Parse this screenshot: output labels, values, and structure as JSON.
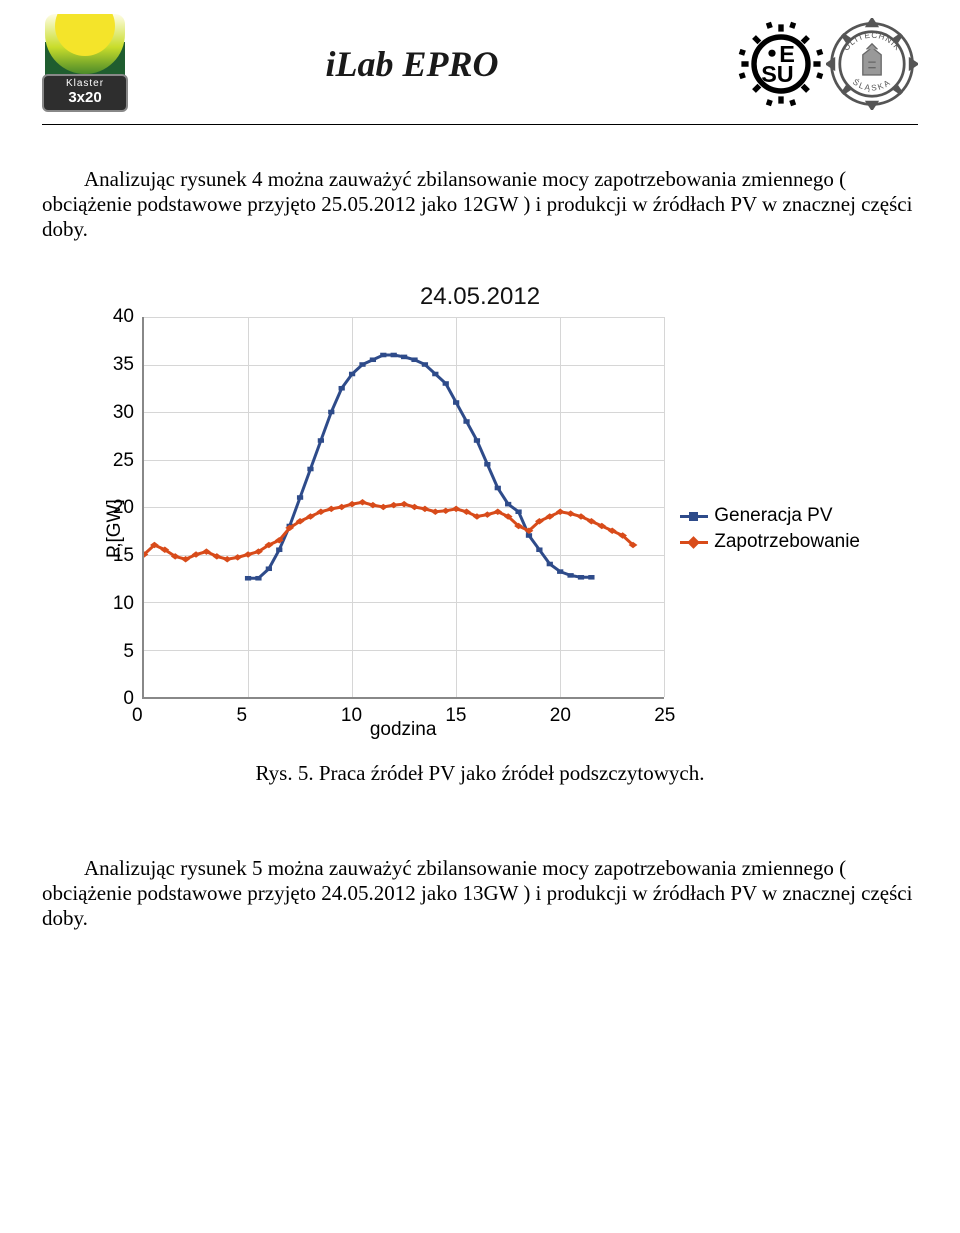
{
  "header": {
    "klaster_top": "Klaster",
    "klaster_num": "3x20",
    "ilab": "iLab EPRO",
    "iesu": "iE SU",
    "polsl_top": "POLITECHNIKA",
    "polsl_bottom": "ŚLĄSKA"
  },
  "para1": "Analizując rysunek 4 można zauważyć zbilansowanie mocy zapotrzebowania zmiennego ( obciążenie podstawowe przyjęto 25.05.2012 jako 12GW ) i produkcji w źródłach PV w znacznej części doby.",
  "chart": {
    "title": "24.05.2012",
    "ylabel": "P,[GW]",
    "xlabel": "godzina",
    "ylim": [
      0,
      40
    ],
    "xlim": [
      0,
      25
    ],
    "yticks": [
      0,
      5,
      10,
      15,
      20,
      25,
      30,
      35,
      40
    ],
    "xticks": [
      0,
      5,
      10,
      15,
      20,
      25
    ],
    "background_color": "#ffffff",
    "grid_color": "#d6d6d6",
    "axis_color": "#888888",
    "series": [
      {
        "name": "Generacja PV",
        "color": "#2e4b8a",
        "marker": "square",
        "linewidth": 3,
        "x": [
          5,
          5.5,
          6,
          6.5,
          7,
          7.5,
          8,
          8.5,
          9,
          9.5,
          10,
          10.5,
          11,
          11.5,
          12,
          12.5,
          13,
          13.5,
          14,
          14.5,
          15,
          15.5,
          16,
          16.5,
          17,
          17.5,
          18,
          18.5,
          19,
          19.5,
          20,
          20.5,
          21,
          21.5
        ],
        "y": [
          12.5,
          12.5,
          13.5,
          15.5,
          18,
          21,
          24,
          27,
          30,
          32.5,
          34,
          35,
          35.5,
          36,
          36,
          35.8,
          35.5,
          35,
          34,
          33,
          31,
          29,
          27,
          24.5,
          22,
          20.3,
          19.5,
          17,
          15.5,
          14,
          13.2,
          12.8,
          12.6,
          12.6
        ]
      },
      {
        "name": "Zapotrzebowanie",
        "color": "#d84b1a",
        "marker": "diamond",
        "linewidth": 3,
        "x": [
          0,
          0.5,
          1,
          1.5,
          2,
          2.5,
          3,
          3.5,
          4,
          4.5,
          5,
          5.5,
          6,
          6.5,
          7,
          7.5,
          8,
          8.5,
          9,
          9.5,
          10,
          10.5,
          11,
          11.5,
          12,
          12.5,
          13,
          13.5,
          14,
          14.5,
          15,
          15.5,
          16,
          16.5,
          17,
          17.5,
          18,
          18.5,
          19,
          19.5,
          20,
          20.5,
          21,
          21.5,
          22,
          22.5,
          23,
          23.5
        ],
        "y": [
          15,
          16,
          15.5,
          14.8,
          14.5,
          15,
          15.3,
          14.8,
          14.5,
          14.7,
          15,
          15.3,
          16,
          16.5,
          17.8,
          18.5,
          19,
          19.5,
          19.8,
          20,
          20.3,
          20.5,
          20.2,
          20,
          20.2,
          20.3,
          20,
          19.8,
          19.5,
          19.6,
          19.8,
          19.5,
          19,
          19.2,
          19.5,
          19,
          18,
          17.5,
          18.5,
          19,
          19.5,
          19.3,
          19,
          18.5,
          18,
          17.5,
          17,
          16
        ]
      }
    ],
    "legend": [
      {
        "label": "Generacja PV",
        "swatch": "blue"
      },
      {
        "label": "Zapotrzebowanie",
        "swatch": "or"
      }
    ]
  },
  "caption": "Rys. 5. Praca źródeł PV jako źródeł podszczytowych.",
  "para2": "Analizując rysunek 5 można zauważyć zbilansowanie mocy zapotrzebowania zmiennego ( obciążenie podstawowe przyjęto 24.05.2012 jako 13GW ) i produkcji w źródłach PV w znacznej części doby."
}
